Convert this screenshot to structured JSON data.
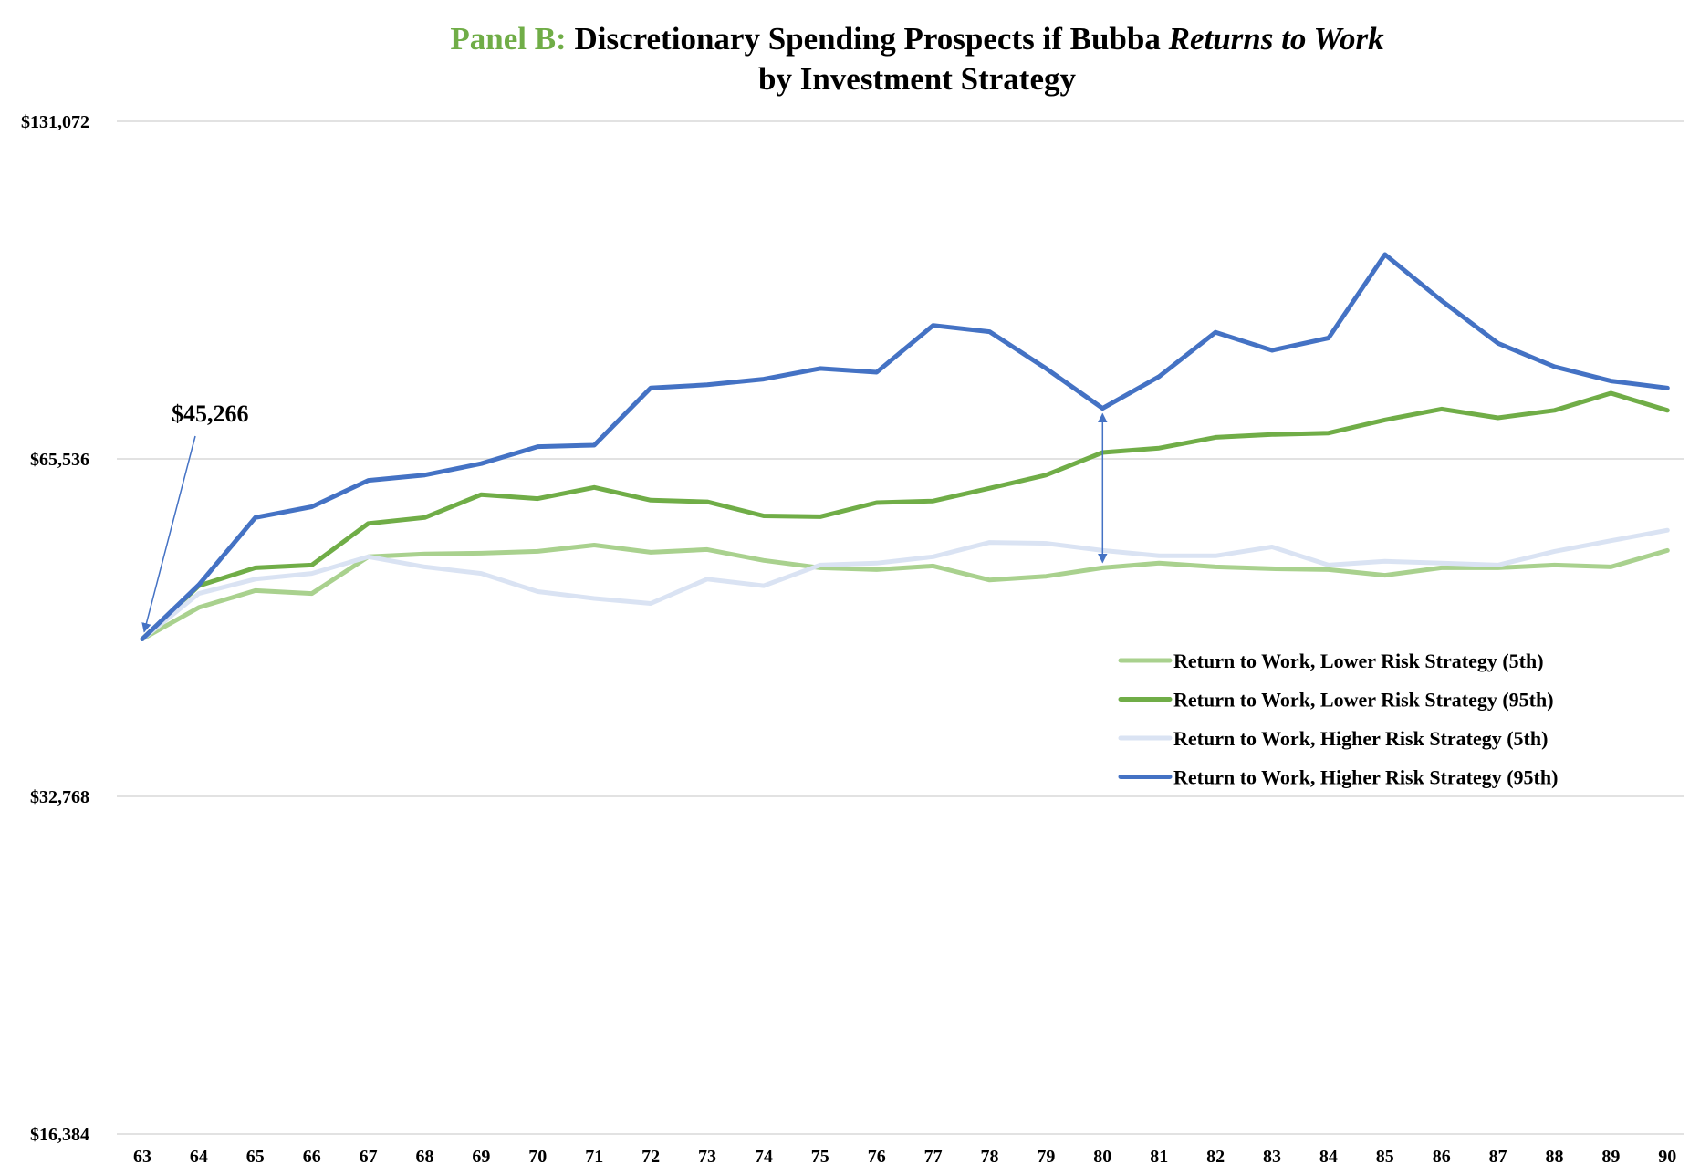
{
  "chart_data": {
    "type": "line",
    "title_prefix": "Panel B:",
    "title_main": " Discretionary Spending Prospects if Bubba ",
    "title_italic": "Returns to Work",
    "subtitle": "by Investment Strategy",
    "y_scale": "log2",
    "ylim": [
      16384,
      131072
    ],
    "y_ticks": [
      16384,
      32768,
      65536,
      131072
    ],
    "y_tick_labels": [
      "$16,384",
      "$32,768",
      "$65,536",
      "$131,072"
    ],
    "grid": true,
    "legend_position": "right",
    "categories": [
      "63",
      "64",
      "65",
      "66",
      "67",
      "68",
      "69",
      "70",
      "71",
      "72",
      "73",
      "74",
      "75",
      "76",
      "77",
      "78",
      "79",
      "80",
      "81",
      "82",
      "83",
      "84",
      "85",
      "86",
      "87",
      "88",
      "89",
      "90"
    ],
    "series": [
      {
        "name": "Return to Work, Lower Risk Strategy (5th)",
        "color": "#A9D18E",
        "values": [
          45266,
          48300,
          50000,
          49700,
          53600,
          53900,
          54000,
          54200,
          54900,
          54100,
          54400,
          53200,
          52400,
          52200,
          52600,
          51100,
          51500,
          52400,
          52900,
          52500,
          52300,
          52200,
          51600,
          52400,
          52400,
          52700,
          52500,
          54300
        ]
      },
      {
        "name": "Return to Work, Lower Risk Strategy (95th)",
        "color": "#70AD47",
        "values": [
          45266,
          50500,
          52400,
          52700,
          57400,
          58100,
          60900,
          60400,
          61800,
          60200,
          60000,
          58300,
          58200,
          59900,
          60100,
          61700,
          63400,
          66400,
          67000,
          68500,
          68900,
          69100,
          71000,
          72600,
          71300,
          72400,
          75000,
          72400
        ]
      },
      {
        "name": "Return to Work, Higher Risk Strategy (5th)",
        "color": "#DAE3F3",
        "values": [
          45266,
          49700,
          51200,
          51800,
          53600,
          52500,
          51800,
          49900,
          49200,
          48700,
          51200,
          50500,
          52700,
          52900,
          53600,
          55200,
          55100,
          54300,
          53700,
          53700,
          54700,
          52700,
          53100,
          52900,
          52700,
          54200,
          55400,
          56600
        ]
      },
      {
        "name": "Return to Work, Higher Risk Strategy (95th)",
        "color": "#4472C4",
        "values": [
          45266,
          50600,
          58100,
          59400,
          62700,
          63400,
          64900,
          67200,
          67400,
          75800,
          76300,
          77200,
          78900,
          78300,
          86200,
          85100,
          78900,
          72700,
          77600,
          85000,
          81900,
          84000,
          99700,
          90700,
          83100,
          79200,
          76900,
          75800
        ]
      }
    ],
    "annotation_label": "$45,266",
    "annotation_value": 45266,
    "bracket_category": "80",
    "bracket_low": 52400,
    "bracket_high": 72700
  }
}
